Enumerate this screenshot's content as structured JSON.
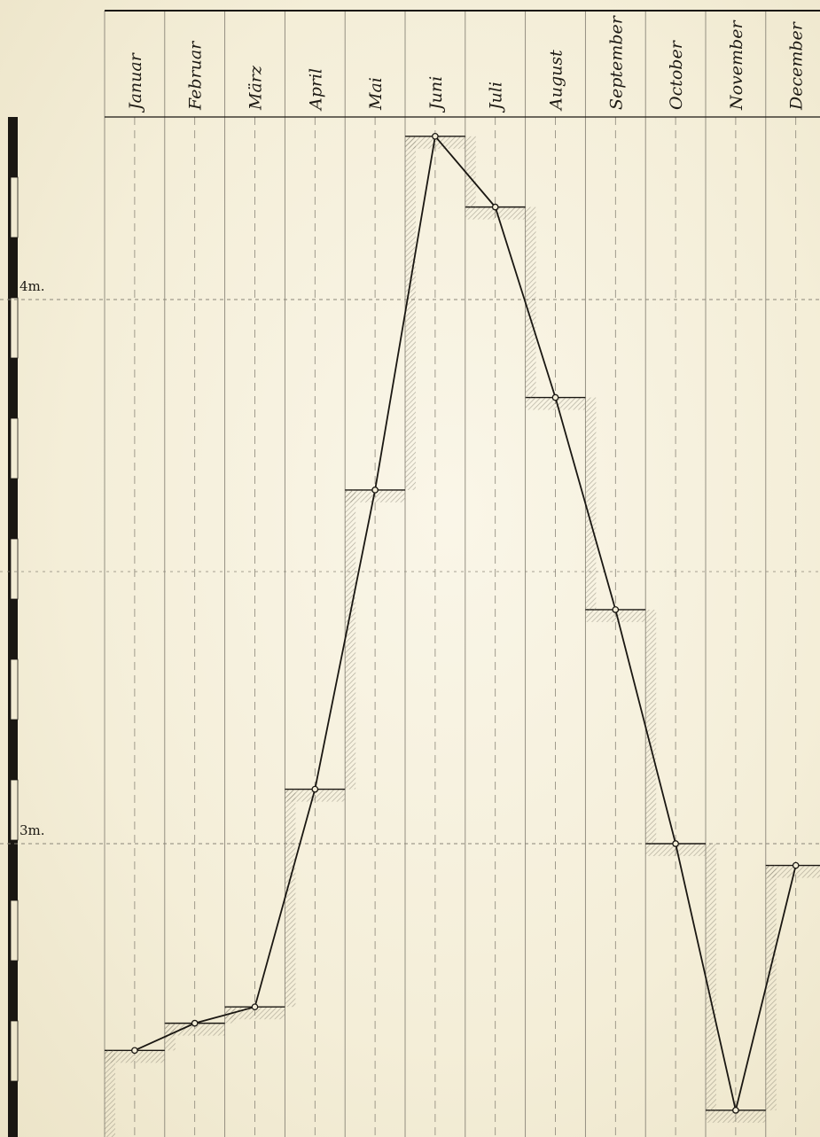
{
  "chart_data": {
    "type": "line",
    "categories": [
      "Januar",
      "Februar",
      "März",
      "April",
      "Mai",
      "Juni",
      "Juli",
      "August",
      "September",
      "October",
      "November",
      "December"
    ],
    "values": [
      2.62,
      2.67,
      2.7,
      3.1,
      3.65,
      4.3,
      4.17,
      3.82,
      3.43,
      3.0,
      2.51,
      2.96
    ],
    "ylim": [
      2.25,
      4.55
    ],
    "y_ticks": [
      {
        "value": 3,
        "label": "3m."
      },
      {
        "value": 4,
        "label": "4m."
      }
    ],
    "grid": true,
    "colors": {
      "line": "#1a1712",
      "grid": "#8a8578",
      "shade": "#8c8778",
      "paper": "#f4eed8"
    }
  }
}
